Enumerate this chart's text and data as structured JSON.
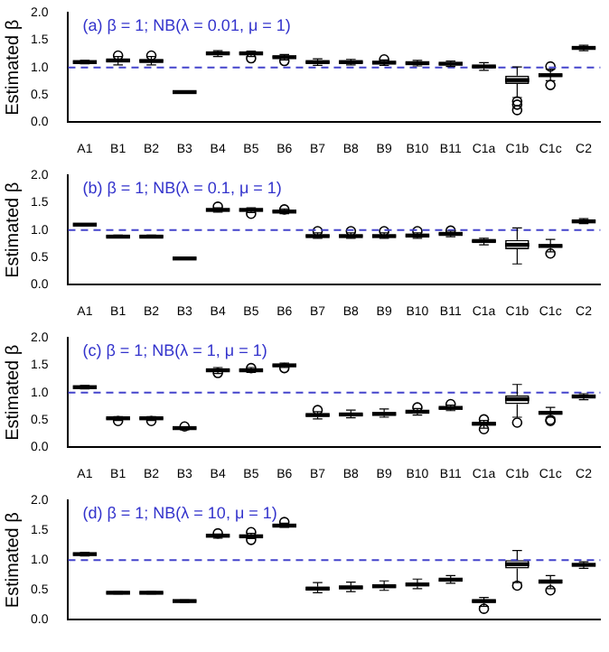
{
  "chart_data": [
    {
      "type": "box",
      "title": "(a) β = 1; NB(λ = 0.01, μ = 1)",
      "ylabel": "Estimated β",
      "categories": [
        "A1",
        "B1",
        "B2",
        "B3",
        "B4",
        "B5",
        "B6",
        "B7",
        "B8",
        "B9",
        "B10",
        "B11",
        "C1a",
        "C1b",
        "C1c",
        "C2"
      ],
      "ylim": [
        0,
        2
      ],
      "yticks": [
        {
          "value": 0,
          "label": "0.0"
        },
        {
          "value": 0.5,
          "label": "0.5"
        },
        {
          "value": 1,
          "label": "1.0"
        },
        {
          "value": 1.5,
          "label": "1.5"
        },
        {
          "value": 2,
          "label": "2.0"
        }
      ],
      "ref_lines": [
        {
          "axis": "y",
          "value": 1,
          "color": "#4444cc",
          "line_style": "dashed"
        }
      ],
      "boxes": [
        {
          "low": 1.07,
          "q1": 1.09,
          "median": 1.1,
          "q3": 1.11,
          "high": 1.13
        },
        {
          "low": 1.05,
          "q1": 1.1,
          "median": 1.13,
          "q3": 1.15,
          "high": 1.2,
          "outliers": [
            1.22
          ]
        },
        {
          "low": 1.05,
          "q1": 1.1,
          "median": 1.12,
          "q3": 1.15,
          "high": 1.2,
          "outliers": [
            1.22
          ]
        },
        {
          "low": 0.53,
          "q1": 0.54,
          "median": 0.55,
          "q3": 0.56,
          "high": 0.57
        },
        {
          "low": 1.2,
          "q1": 1.24,
          "median": 1.26,
          "q3": 1.28,
          "high": 1.31
        },
        {
          "low": 1.2,
          "q1": 1.24,
          "median": 1.26,
          "q3": 1.28,
          "high": 1.3,
          "outliers": [
            1.17
          ]
        },
        {
          "low": 1.14,
          "q1": 1.17,
          "median": 1.19,
          "q3": 1.21,
          "high": 1.24,
          "outliers": [
            1.12
          ]
        },
        {
          "low": 1.04,
          "q1": 1.08,
          "median": 1.1,
          "q3": 1.12,
          "high": 1.16
        },
        {
          "low": 1.05,
          "q1": 1.08,
          "median": 1.1,
          "q3": 1.12,
          "high": 1.15
        },
        {
          "low": 1.04,
          "q1": 1.07,
          "median": 1.09,
          "q3": 1.11,
          "high": 1.14,
          "outliers": [
            1.15
          ]
        },
        {
          "low": 1.03,
          "q1": 1.06,
          "median": 1.08,
          "q3": 1.1,
          "high": 1.13
        },
        {
          "low": 1.02,
          "q1": 1.05,
          "median": 1.07,
          "q3": 1.09,
          "high": 1.12
        },
        {
          "low": 0.95,
          "q1": 0.99,
          "median": 1.02,
          "q3": 1.04,
          "high": 1.09
        },
        {
          "low": 0.45,
          "q1": 0.7,
          "median": 0.77,
          "q3": 0.85,
          "high": 1.01,
          "outliers": [
            0.38,
            0.32,
            0.22
          ]
        },
        {
          "low": 0.76,
          "q1": 0.83,
          "median": 0.86,
          "q3": 0.89,
          "high": 0.97,
          "outliers": [
            0.68,
            1.02
          ]
        },
        {
          "low": 1.31,
          "q1": 1.34,
          "median": 1.36,
          "q3": 1.38,
          "high": 1.41
        }
      ]
    },
    {
      "type": "box",
      "title": "(b) β = 1; NB(λ = 0.1, μ = 1)",
      "ylabel": "Estimated β",
      "categories": [
        "A1",
        "B1",
        "B2",
        "B3",
        "B4",
        "B5",
        "B6",
        "B7",
        "B8",
        "B9",
        "B10",
        "B11",
        "C1a",
        "C1b",
        "C1c",
        "C2"
      ],
      "ylim": [
        0,
        2
      ],
      "yticks": [
        {
          "value": 0,
          "label": "0.0"
        },
        {
          "value": 0.5,
          "label": "0.5"
        },
        {
          "value": 1,
          "label": "1.0"
        },
        {
          "value": 1.5,
          "label": "1.5"
        },
        {
          "value": 2,
          "label": "2.0"
        }
      ],
      "ref_lines": [
        {
          "axis": "y",
          "value": 1,
          "color": "#4444cc",
          "line_style": "dashed"
        }
      ],
      "boxes": [
        {
          "low": 1.08,
          "q1": 1.09,
          "median": 1.1,
          "q3": 1.11,
          "high": 1.12
        },
        {
          "low": 0.86,
          "q1": 0.87,
          "median": 0.88,
          "q3": 0.9,
          "high": 0.91
        },
        {
          "low": 0.86,
          "q1": 0.87,
          "median": 0.88,
          "q3": 0.9,
          "high": 0.91
        },
        {
          "low": 0.46,
          "q1": 0.47,
          "median": 0.48,
          "q3": 0.49,
          "high": 0.5
        },
        {
          "low": 1.33,
          "q1": 1.35,
          "median": 1.37,
          "q3": 1.39,
          "high": 1.41,
          "outliers": [
            1.43
          ]
        },
        {
          "low": 1.32,
          "q1": 1.35,
          "median": 1.37,
          "q3": 1.38,
          "high": 1.41,
          "outliers": [
            1.3
          ]
        },
        {
          "low": 1.3,
          "q1": 1.32,
          "median": 1.34,
          "q3": 1.36,
          "high": 1.39,
          "outliers": [
            1.38
          ]
        },
        {
          "low": 0.85,
          "q1": 0.88,
          "median": 0.89,
          "q3": 0.91,
          "high": 0.95,
          "outliers": [
            0.98
          ]
        },
        {
          "low": 0.85,
          "q1": 0.88,
          "median": 0.89,
          "q3": 0.91,
          "high": 0.95,
          "outliers": [
            0.98
          ]
        },
        {
          "low": 0.85,
          "q1": 0.88,
          "median": 0.89,
          "q3": 0.91,
          "high": 0.95,
          "outliers": [
            0.98
          ]
        },
        {
          "low": 0.85,
          "q1": 0.88,
          "median": 0.9,
          "q3": 0.92,
          "high": 0.95,
          "outliers": [
            0.98
          ]
        },
        {
          "low": 0.88,
          "q1": 0.91,
          "median": 0.93,
          "q3": 0.95,
          "high": 0.98,
          "outliers": [
            0.99
          ]
        },
        {
          "low": 0.73,
          "q1": 0.78,
          "median": 0.8,
          "q3": 0.82,
          "high": 0.85
        },
        {
          "low": 0.38,
          "q1": 0.65,
          "median": 0.73,
          "q3": 0.82,
          "high": 1.04
        },
        {
          "low": 0.6,
          "q1": 0.68,
          "median": 0.71,
          "q3": 0.73,
          "high": 0.83,
          "outliers": [
            0.57
          ]
        },
        {
          "low": 1.12,
          "q1": 1.15,
          "median": 1.16,
          "q3": 1.18,
          "high": 1.21
        }
      ]
    },
    {
      "type": "box",
      "title": "(c) β = 1; NB(λ = 1, μ = 1)",
      "ylabel": "Estimated β",
      "categories": [
        "A1",
        "B1",
        "B2",
        "B3",
        "B4",
        "B5",
        "B6",
        "B7",
        "B8",
        "B9",
        "B10",
        "B11",
        "C1a",
        "C1b",
        "C1c",
        "C2"
      ],
      "ylim": [
        0,
        2
      ],
      "yticks": [
        {
          "value": 0,
          "label": "0.0"
        },
        {
          "value": 0.5,
          "label": "0.5"
        },
        {
          "value": 1,
          "label": "1.0"
        },
        {
          "value": 1.5,
          "label": "1.5"
        },
        {
          "value": 2,
          "label": "2.0"
        }
      ],
      "ref_lines": [
        {
          "axis": "y",
          "value": 1,
          "color": "#4444cc",
          "line_style": "dashed"
        }
      ],
      "boxes": [
        {
          "low": 1.07,
          "q1": 1.09,
          "median": 1.1,
          "q3": 1.11,
          "high": 1.13
        },
        {
          "low": 0.49,
          "q1": 0.51,
          "median": 0.53,
          "q3": 0.54,
          "high": 0.56,
          "outliers": [
            0.48
          ]
        },
        {
          "low": 0.49,
          "q1": 0.51,
          "median": 0.53,
          "q3": 0.54,
          "high": 0.56,
          "outliers": [
            0.48
          ]
        },
        {
          "low": 0.32,
          "q1": 0.34,
          "median": 0.35,
          "q3": 0.36,
          "high": 0.37,
          "outliers": [
            0.38
          ]
        },
        {
          "low": 1.35,
          "q1": 1.39,
          "median": 1.41,
          "q3": 1.43,
          "high": 1.46,
          "outliers": [
            1.36
          ]
        },
        {
          "low": 1.37,
          "q1": 1.39,
          "median": 1.41,
          "q3": 1.43,
          "high": 1.46,
          "outliers": [
            1.45
          ]
        },
        {
          "low": 1.46,
          "q1": 1.48,
          "median": 1.5,
          "q3": 1.52,
          "high": 1.54,
          "outliers": [
            1.45
          ]
        },
        {
          "low": 0.52,
          "q1": 0.56,
          "median": 0.59,
          "q3": 0.61,
          "high": 0.65,
          "outliers": [
            0.68
          ]
        },
        {
          "low": 0.54,
          "q1": 0.57,
          "median": 0.6,
          "q3": 0.62,
          "high": 0.68
        },
        {
          "low": 0.55,
          "q1": 0.58,
          "median": 0.61,
          "q3": 0.64,
          "high": 0.7
        },
        {
          "low": 0.59,
          "q1": 0.62,
          "median": 0.65,
          "q3": 0.67,
          "high": 0.71,
          "outliers": [
            0.73
          ]
        },
        {
          "low": 0.67,
          "q1": 0.7,
          "median": 0.72,
          "q3": 0.74,
          "high": 0.77,
          "outliers": [
            0.79
          ]
        },
        {
          "low": 0.35,
          "q1": 0.4,
          "median": 0.43,
          "q3": 0.45,
          "high": 0.49,
          "outliers": [
            0.33,
            0.51
          ]
        },
        {
          "low": 0.55,
          "q1": 0.79,
          "median": 0.88,
          "q3": 0.95,
          "high": 1.15,
          "outliers": [
            0.45
          ]
        },
        {
          "low": 0.55,
          "q1": 0.6,
          "median": 0.63,
          "q3": 0.65,
          "high": 0.73,
          "outliers": [
            0.48,
            0.5
          ]
        },
        {
          "low": 0.87,
          "q1": 0.91,
          "median": 0.93,
          "q3": 0.95,
          "high": 0.98
        }
      ]
    },
    {
      "type": "box",
      "title": "(d) β = 1; NB(λ = 10, μ = 1)",
      "ylabel": "Estimated β",
      "tick_labels": "y",
      "categories": [
        null,
        null,
        null,
        null,
        null,
        null,
        null,
        null,
        null,
        null,
        null,
        null,
        null,
        null,
        null,
        null
      ],
      "ylim": [
        0,
        2
      ],
      "yticks": [
        {
          "value": 0,
          "label": "0.0"
        },
        {
          "value": 0.5,
          "label": "0.5"
        },
        {
          "value": 1,
          "label": "1.0"
        },
        {
          "value": 1.5,
          "label": "1.5"
        },
        {
          "value": 2,
          "label": "2.0"
        }
      ],
      "ref_lines": [
        {
          "axis": "y",
          "value": 1,
          "color": "#4444cc",
          "line_style": "dashed"
        }
      ],
      "boxes": [
        {
          "low": 1.07,
          "q1": 1.09,
          "median": 1.1,
          "q3": 1.11,
          "high": 1.13
        },
        {
          "low": 0.43,
          "q1": 0.44,
          "median": 0.45,
          "q3": 0.46,
          "high": 0.47
        },
        {
          "low": 0.43,
          "q1": 0.44,
          "median": 0.45,
          "q3": 0.46,
          "high": 0.47
        },
        {
          "low": 0.29,
          "q1": 0.3,
          "median": 0.31,
          "q3": 0.32,
          "high": 0.33
        },
        {
          "low": 1.37,
          "q1": 1.39,
          "median": 1.41,
          "q3": 1.42,
          "high": 1.44,
          "outliers": [
            1.45
          ]
        },
        {
          "low": 1.36,
          "q1": 1.38,
          "median": 1.4,
          "q3": 1.42,
          "high": 1.45,
          "outliers": [
            1.34,
            1.47
          ]
        },
        {
          "low": 1.55,
          "q1": 1.57,
          "median": 1.58,
          "q3": 1.6,
          "high": 1.62,
          "outliers": [
            1.64
          ]
        },
        {
          "low": 0.45,
          "q1": 0.49,
          "median": 0.52,
          "q3": 0.55,
          "high": 0.62
        },
        {
          "low": 0.47,
          "q1": 0.51,
          "median": 0.54,
          "q3": 0.57,
          "high": 0.63
        },
        {
          "low": 0.49,
          "q1": 0.53,
          "median": 0.56,
          "q3": 0.59,
          "high": 0.65
        },
        {
          "low": 0.52,
          "q1": 0.56,
          "median": 0.59,
          "q3": 0.62,
          "high": 0.68
        },
        {
          "low": 0.61,
          "q1": 0.64,
          "median": 0.67,
          "q3": 0.69,
          "high": 0.74
        },
        {
          "low": 0.22,
          "q1": 0.28,
          "median": 0.31,
          "q3": 0.33,
          "high": 0.37,
          "outliers": [
            0.18
          ]
        },
        {
          "low": 0.62,
          "q1": 0.86,
          "median": 0.93,
          "q3": 1.0,
          "high": 1.16,
          "outliers": [
            0.57
          ]
        },
        {
          "low": 0.52,
          "q1": 0.6,
          "median": 0.64,
          "q3": 0.67,
          "high": 0.74,
          "outliers": [
            0.49
          ]
        },
        {
          "low": 0.86,
          "q1": 0.9,
          "median": 0.92,
          "q3": 0.94,
          "high": 0.97
        }
      ]
    }
  ]
}
